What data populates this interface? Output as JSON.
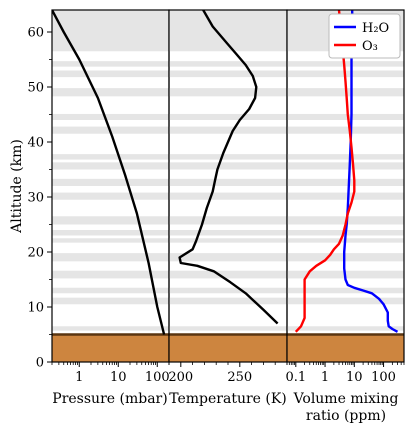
{
  "chart_data": [
    {
      "type": "line",
      "panel": "pressure",
      "xscale": "log",
      "xlim": [
        0.2,
        200
      ],
      "ylim": [
        0,
        64
      ],
      "xlabel": "Pressure (mbar)",
      "ylabel": "Altitude (km)",
      "xtick_labels": [
        "1",
        "10",
        "100"
      ],
      "ytick_labels": [
        "0",
        "10",
        "20",
        "30",
        "40",
        "50",
        "60"
      ],
      "series": [
        {
          "color": "#000000",
          "points": [
            [
              0.2,
              64
            ],
            [
              0.4,
              60
            ],
            [
              1,
              55
            ],
            [
              3,
              48
            ],
            [
              7,
              41
            ],
            [
              15,
              34
            ],
            [
              30,
              27
            ],
            [
              60,
              18
            ],
            [
              100,
              10
            ],
            [
              150,
              5
            ]
          ]
        }
      ]
    },
    {
      "type": "line",
      "panel": "temperature",
      "xlim": [
        190,
        290
      ],
      "ylim": [
        0,
        64
      ],
      "xlabel": "Temperature (K)",
      "xtick_labels": [
        "200",
        "250"
      ],
      "series": [
        {
          "color": "#000000",
          "points": [
            [
              282,
              7
            ],
            [
              270,
              9.5
            ],
            [
              255,
              12.5
            ],
            [
              242,
              14.5
            ],
            [
              228,
              16.5
            ],
            [
              214,
              17.5
            ],
            [
              200,
              18
            ],
            [
              199,
              19
            ],
            [
              210,
              20.5
            ],
            [
              213,
              22
            ],
            [
              218,
              25
            ],
            [
              222,
              28
            ],
            [
              227,
              31
            ],
            [
              229,
              33
            ],
            [
              231,
              35
            ],
            [
              236,
              38
            ],
            [
              240,
              40
            ],
            [
              244,
              42
            ],
            [
              250,
              44
            ],
            [
              258,
              46
            ],
            [
              263,
              48
            ],
            [
              264,
              50
            ],
            [
              261,
              52
            ],
            [
              255,
              54
            ],
            [
              247,
              56
            ],
            [
              239,
              58
            ],
            [
              227,
              61
            ],
            [
              219,
              64
            ]
          ]
        }
      ]
    },
    {
      "type": "line",
      "panel": "mixing_ratio",
      "xscale": "log",
      "xlim": [
        0.05,
        500
      ],
      "ylim": [
        0,
        64
      ],
      "xlabel": "Volume mixing",
      "xlabel2": "ratio (ppm)",
      "xtick_labels": [
        "0.1",
        "1",
        "10",
        "100"
      ],
      "series": [
        {
          "name": "H₂O",
          "color": "#0000ff",
          "points": [
            [
              300,
              5.5
            ],
            [
              200,
              6
            ],
            [
              150,
              6.5
            ],
            [
              140,
              7.5
            ],
            [
              140,
              9
            ],
            [
              100,
              10.5
            ],
            [
              70,
              11.5
            ],
            [
              40,
              12.5
            ],
            [
              20,
              13
            ],
            [
              10,
              13.5
            ],
            [
              6,
              14
            ],
            [
              5,
              15
            ],
            [
              4.5,
              17
            ],
            [
              4.5,
              20
            ],
            [
              5,
              23
            ],
            [
              5.5,
              25
            ],
            [
              6,
              28
            ],
            [
              6.5,
              32
            ],
            [
              7,
              36
            ],
            [
              7.5,
              40
            ],
            [
              8,
              45
            ],
            [
              8,
              50
            ],
            [
              8,
              55
            ],
            [
              8.5,
              60
            ],
            [
              8.5,
              64
            ]
          ]
        },
        {
          "name": "O₃",
          "color": "#ff0000",
          "points": [
            [
              0.1,
              5.5
            ],
            [
              0.15,
              6.5
            ],
            [
              0.2,
              8
            ],
            [
              0.2,
              10
            ],
            [
              0.2,
              12
            ],
            [
              0.2,
              15
            ],
            [
              0.3,
              16.5
            ],
            [
              0.5,
              17.5
            ],
            [
              1,
              18.5
            ],
            [
              1.5,
              19.5
            ],
            [
              2,
              20.5
            ],
            [
              3,
              21.5
            ],
            [
              4,
              23
            ],
            [
              5,
              25
            ],
            [
              6,
              27
            ],
            [
              8,
              29
            ],
            [
              10,
              31
            ],
            [
              10,
              33
            ],
            [
              9,
              36
            ],
            [
              8,
              39
            ],
            [
              7,
              42
            ],
            [
              6,
              45
            ],
            [
              5.5,
              48
            ],
            [
              5,
              51
            ],
            [
              4.5,
              54
            ],
            [
              4,
              57
            ],
            [
              3.5,
              60
            ],
            [
              3,
              64
            ]
          ]
        }
      ]
    }
  ],
  "legend": {
    "position": "top-right",
    "items": [
      {
        "label": "H₂O",
        "color": "#0000ff"
      },
      {
        "label": "O₃",
        "color": "#ff0000"
      }
    ]
  },
  "cloud_bands": [
    [
      5.7,
      6.5
    ],
    [
      10.5,
      11.7
    ],
    [
      12.5,
      13.5
    ],
    [
      15.2,
      16.6
    ],
    [
      18.3,
      19.8
    ],
    [
      21.7,
      22.5
    ],
    [
      23,
      24
    ],
    [
      25,
      26.5
    ],
    [
      29.5,
      30.8
    ],
    [
      32,
      33.3
    ],
    [
      35,
      36.3
    ],
    [
      36.8,
      37.8
    ],
    [
      41.5,
      42.8
    ],
    [
      44,
      45.1
    ],
    [
      48.3,
      49.8
    ],
    [
      51.8,
      53
    ],
    [
      53.7,
      54.7
    ],
    [
      56.5,
      64
    ]
  ],
  "surface": {
    "top": 5,
    "color": "#cd853f",
    "edge_color": "#5a3510"
  }
}
